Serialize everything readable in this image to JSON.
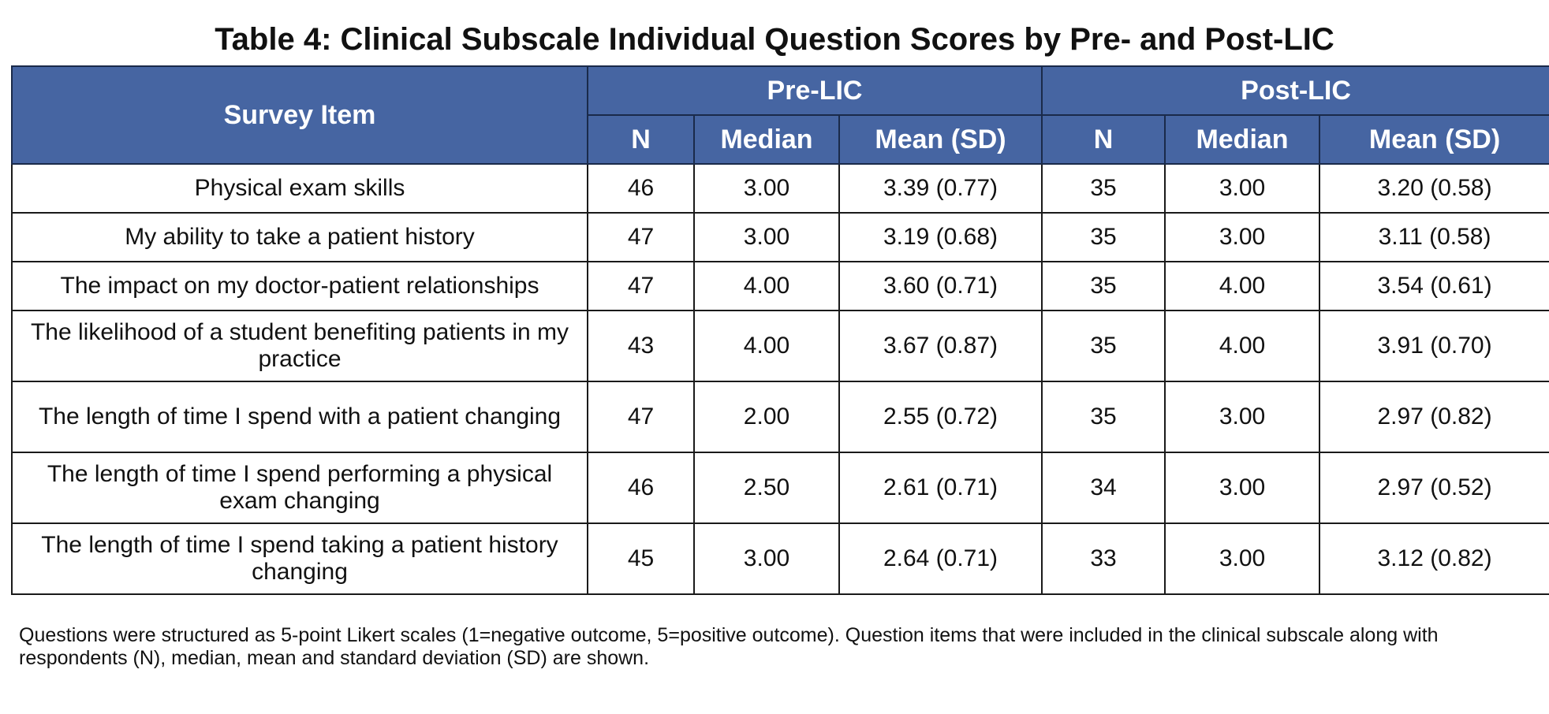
{
  "title": "Table 4: Clinical Subscale Individual Question Scores by Pre- and Post-LIC",
  "header": {
    "survey_item": "Survey Item",
    "pre_group": "Pre-LIC",
    "post_group": "Post-LIC",
    "columns": [
      "N",
      "Median",
      "Mean (SD)",
      "N",
      "Median",
      "Mean (SD)"
    ]
  },
  "colors": {
    "header_bg": "#4665a2",
    "header_text": "#ffffff",
    "border": "#1a1a1a"
  },
  "rows": [
    {
      "item": "Physical exam skills",
      "pre_n": "46",
      "pre_median": "3.00",
      "pre_mean_sd": "3.39 (0.77)",
      "post_n": "35",
      "post_median": "3.00",
      "post_mean_sd": "3.20 (0.58)"
    },
    {
      "item": "My ability to take a patient history",
      "pre_n": "47",
      "pre_median": "3.00",
      "pre_mean_sd": "3.19 (0.68)",
      "post_n": "35",
      "post_median": "3.00",
      "post_mean_sd": "3.11 (0.58)"
    },
    {
      "item": "The impact on my doctor-patient relationships",
      "pre_n": "47",
      "pre_median": "4.00",
      "pre_mean_sd": "3.60 (0.71)",
      "post_n": "35",
      "post_median": "4.00",
      "post_mean_sd": "3.54 (0.61)"
    },
    {
      "item": "The likelihood of a student benefiting patients in my practice",
      "pre_n": "43",
      "pre_median": "4.00",
      "pre_mean_sd": "3.67 (0.87)",
      "post_n": "35",
      "post_median": "4.00",
      "post_mean_sd": "3.91 (0.70)"
    },
    {
      "item": "The length of time I spend with a patient changing",
      "pre_n": "47",
      "pre_median": "2.00",
      "pre_mean_sd": "2.55 (0.72)",
      "post_n": "35",
      "post_median": "3.00",
      "post_mean_sd": "2.97 (0.82)"
    },
    {
      "item": "The length of time I spend performing a physical exam changing",
      "pre_n": "46",
      "pre_median": "2.50",
      "pre_mean_sd": "2.61 (0.71)",
      "post_n": "34",
      "post_median": "3.00",
      "post_mean_sd": "2.97 (0.52)"
    },
    {
      "item": "The length of time I spend taking a patient history changing",
      "pre_n": "45",
      "pre_median": "3.00",
      "pre_mean_sd": "2.64 (0.71)",
      "post_n": "33",
      "post_median": "3.00",
      "post_mean_sd": "3.12 (0.82)"
    }
  ],
  "footnote": "Questions were structured as 5-point Likert scales (1=negative outcome, 5=positive outcome). Question items that were included in the clinical subscale along with respondents (N), median, mean and standard deviation (SD) are shown."
}
